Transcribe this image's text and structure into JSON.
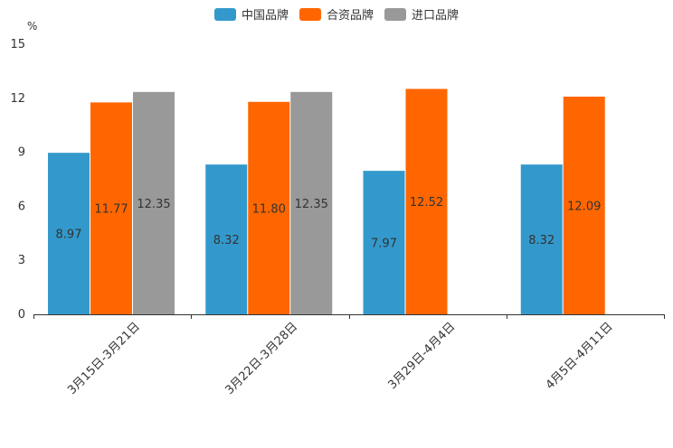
{
  "chart_data": {
    "type": "bar",
    "title": "",
    "unit_label": "%",
    "xlabel": "",
    "ylabel": "%",
    "ylim": [
      0,
      15
    ],
    "yticks": [
      0,
      3,
      6,
      9,
      12,
      15
    ],
    "grid": false,
    "legend_position": "top-center",
    "categories": [
      "3月15日-3月21日",
      "3月22日-3月28日",
      "3月29日-4月4日",
      "4月5日-4月11日"
    ],
    "series": [
      {
        "name": "中国品牌",
        "color": "#3399cc",
        "values": [
          8.97,
          8.32,
          7.97,
          8.32
        ]
      },
      {
        "name": "合资品牌",
        "color": "#ff6600",
        "values": [
          11.77,
          11.8,
          12.52,
          12.09
        ]
      },
      {
        "name": "进口品牌",
        "color": "#999999",
        "values": [
          12.35,
          12.35,
          null,
          null
        ]
      }
    ]
  }
}
